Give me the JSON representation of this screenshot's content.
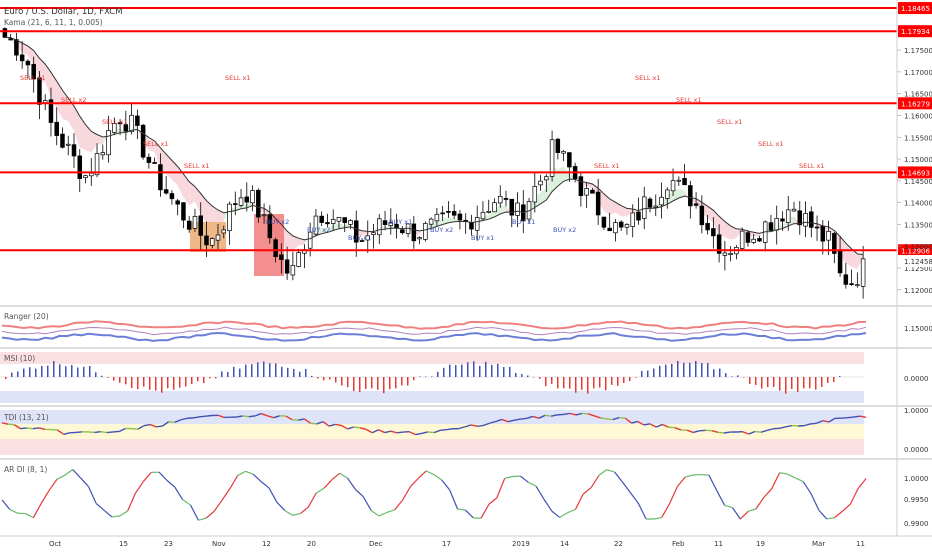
{
  "chart_data": [
    {
      "type": "candlestick",
      "title": "Euro / U.S. Dollar, 1D, FXCM",
      "subtitle": "Kama (21, 6, 11, 1, 0.005)",
      "ylim": [
        1.1165,
        1.1865
      ],
      "yticks": [
        1.12,
        1.125,
        1.13,
        1.135,
        1.14,
        1.145,
        1.15,
        1.155,
        1.16,
        1.165,
        1.17,
        1.175
      ],
      "ytick_labels": [
        "1.12000",
        "1.12500",
        "1.13000",
        "1.13500",
        "1.14000",
        "1.14500",
        "1.15000",
        "1.15500",
        "1.16000",
        "1.16500",
        "1.17000",
        "1.17500"
      ],
      "horizontal_levels": [
        {
          "value": 1.18465,
          "label": "1.18465"
        },
        {
          "value": 1.17934,
          "label": "1.17934"
        },
        {
          "value": 1.16279,
          "label": "1.16279"
        },
        {
          "value": 1.14693,
          "label": "1.14693"
        },
        {
          "value": 1.12906,
          "label": "1.12906"
        }
      ],
      "last_price": {
        "value": 1.12458,
        "label": "1.12458"
      },
      "x_labels": [
        "Oct",
        "15",
        "23",
        "Nov",
        "12",
        "20",
        "Dec",
        "17",
        "2019",
        "14",
        "22",
        "Feb",
        "11",
        "19",
        "Mar",
        "11"
      ],
      "anchors": [
        1.178,
        1.176,
        1.172,
        1.165,
        1.158,
        1.154,
        1.15,
        1.146,
        1.15,
        1.156,
        1.16,
        1.158,
        1.153,
        1.147,
        1.143,
        1.139,
        1.136,
        1.133,
        1.131,
        1.135,
        1.14,
        1.143,
        1.139,
        1.133,
        1.127,
        1.123,
        1.13,
        1.137,
        1.138,
        1.136,
        1.134,
        1.131,
        1.133,
        1.135,
        1.136,
        1.134,
        1.133,
        1.134,
        1.135,
        1.136,
        1.135,
        1.137,
        1.139,
        1.141,
        1.139,
        1.137,
        1.142,
        1.146,
        1.153,
        1.149,
        1.145,
        1.141,
        1.138,
        1.135,
        1.133,
        1.136,
        1.14,
        1.142,
        1.146,
        1.143,
        1.141,
        1.137,
        1.132,
        1.129,
        1.131,
        1.133,
        1.134,
        1.136,
        1.138,
        1.139,
        1.136,
        1.133,
        1.131,
        1.123,
        1.122,
        1.125
      ],
      "annotations": [
        {
          "text": "SELL x1",
          "pos": 0.175
        },
        {
          "text": "SELL x2",
          "pos": 0.158
        },
        {
          "text": "SELL x1",
          "pos": 0.287
        },
        {
          "text": "SELL x1",
          "pos": 0.268
        },
        {
          "text": "SELL x1",
          "pos": 0.292
        },
        {
          "text": "SELL x1",
          "pos": 0.465
        },
        {
          "text": "BUY x2",
          "pos": 0.585
        },
        {
          "text": "BUY x2",
          "pos": 0.61
        },
        {
          "text": "BUY x1",
          "pos": 0.632
        },
        {
          "text": "BUY x1",
          "pos": 0.655
        },
        {
          "text": "BUY x2",
          "pos": 0.64
        },
        {
          "text": "BUY x1",
          "pos": 0.666
        },
        {
          "text": "BUY x1",
          "pos": 0.698
        },
        {
          "text": "BUY x2",
          "pos": 0.715
        },
        {
          "text": "SELL x1",
          "pos": 0.785
        },
        {
          "text": "SELL x1",
          "pos": 0.805
        },
        {
          "text": "SELL x1",
          "pos": 0.945
        },
        {
          "text": "SELL x1",
          "pos": 0.965
        },
        {
          "text": "SELL x1",
          "pos": 0.98
        },
        {
          "text": "SELL x1",
          "pos": 1.05
        }
      ],
      "colors": {
        "up": "#ffffff",
        "down": "#000000",
        "level": "#ff0000",
        "kama": "#333333",
        "bull_fill": "#d7efd9",
        "bear_fill": "#f7d4d8",
        "buy": "#3f51b5",
        "sell": "#e53935"
      }
    },
    {
      "type": "line",
      "title": "Ranger (20)",
      "ytick_labels": [
        "1.15000"
      ],
      "colors": {
        "upper": "#f08080",
        "lower": "#6b7fd7"
      }
    },
    {
      "type": "bar",
      "title": "MSI (10)",
      "ytick_labels": [
        "0.0000"
      ],
      "colors": {
        "pos": "#3f51b5",
        "neg": "#e53935"
      }
    },
    {
      "type": "line",
      "title": "TDI (13, 21)",
      "ytick_labels": [
        "1.0000",
        "0.0000"
      ],
      "colors": {
        "up": "#3f51b5",
        "down": "#e53935",
        "mid": "#8bc34a"
      }
    },
    {
      "type": "line",
      "title": "AR DI (8, 1)",
      "ytick_labels": [
        "1.0000",
        "0.9950",
        "0.9900"
      ],
      "colors": {
        "up": "#e53935",
        "down": "#3f51b5",
        "mid": "#66bb6a"
      }
    }
  ]
}
